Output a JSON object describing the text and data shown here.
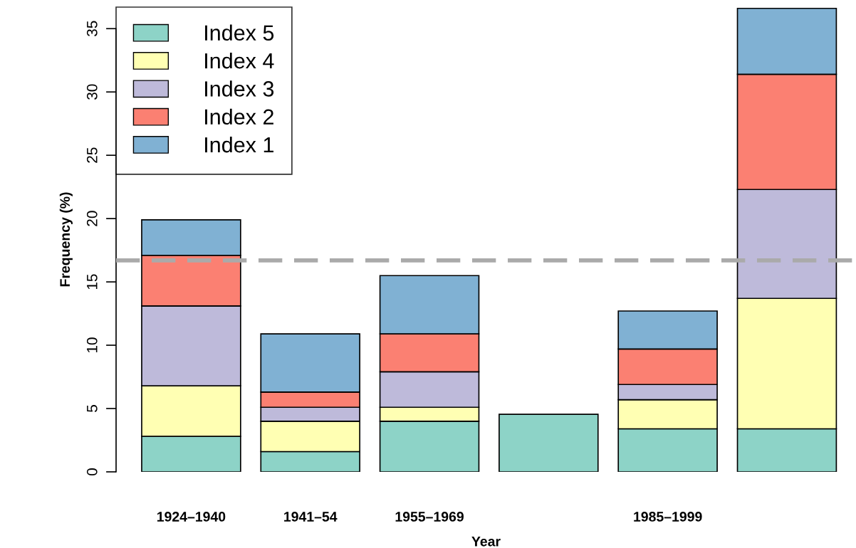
{
  "chart_data": {
    "type": "bar",
    "stacked": true,
    "xlabel": "Year",
    "ylabel": "Frequency (%)",
    "categories": [
      "1924–1940",
      "1941–54",
      "1955–1969",
      null,
      "1985–1999",
      null
    ],
    "series": [
      {
        "name": "Index 5",
        "color": "#8dd3c7",
        "values": [
          2.8,
          1.6,
          4.0,
          4.55,
          3.4,
          3.4
        ]
      },
      {
        "name": "Index 4",
        "color": "#ffffb3",
        "values": [
          4.0,
          2.4,
          1.1,
          null,
          2.3,
          10.3
        ]
      },
      {
        "name": "Index 3",
        "color": "#bebada",
        "values": [
          6.3,
          1.1,
          2.8,
          null,
          1.2,
          8.6
        ]
      },
      {
        "name": "Index 2",
        "color": "#fb8072",
        "values": [
          4.0,
          1.2,
          3.0,
          null,
          2.8,
          9.1
        ]
      },
      {
        "name": "Index 1",
        "color": "#80b1d3",
        "values": [
          2.8,
          4.6,
          4.6,
          null,
          3.0,
          5.2
        ]
      }
    ],
    "ylim": [
      0,
      36.7
    ],
    "yticks": [
      0,
      5,
      10,
      15,
      20,
      25,
      30,
      35
    ],
    "ref_lines": [
      {
        "axis": "y",
        "value": 16.7,
        "color": "#aaaaaa",
        "line_style": "dashed"
      }
    ],
    "legend": "top left",
    "grid": false
  }
}
